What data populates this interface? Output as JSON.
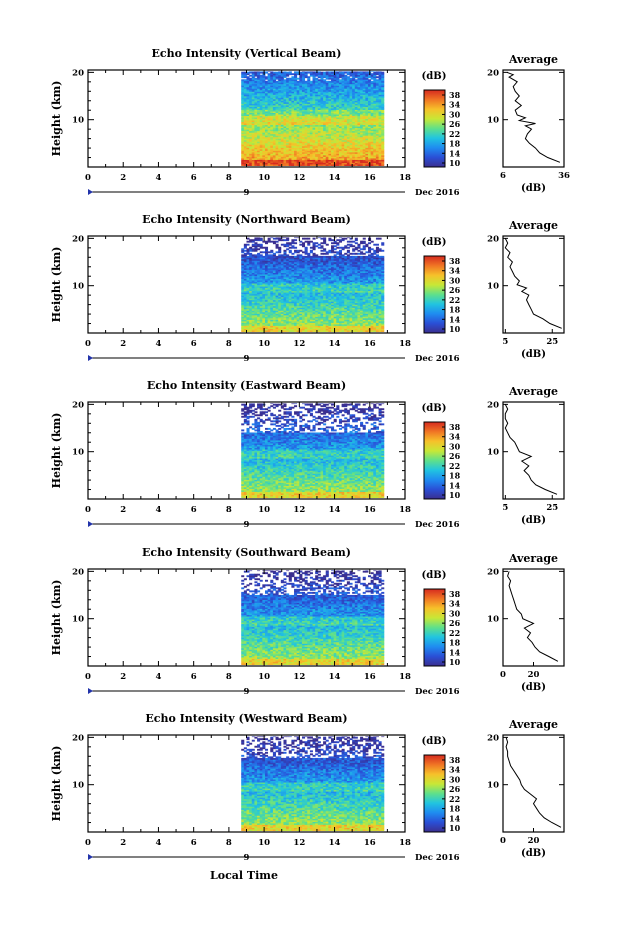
{
  "chart_data": {
    "type": "heatmap",
    "x_ticks": [
      0,
      2,
      4,
      6,
      8,
      10,
      12,
      14,
      16,
      18
    ],
    "y_ticks": [
      10,
      20
    ],
    "xlim": [
      0,
      18
    ],
    "ylim": [
      0,
      20.5
    ],
    "y_axis_label": "Height (km)",
    "x_axis_label": "Local Time",
    "date_marker": "9",
    "date_label": "Dec 2016",
    "colorbar": {
      "unit": "(dB)",
      "ticks": [
        "38",
        "34",
        "30",
        "26",
        "22",
        "18",
        "14",
        "10"
      ],
      "range": [
        10,
        38
      ],
      "colormap": [
        "#3b2e8f",
        "#2a4fd6",
        "#1f8cf0",
        "#21c4e0",
        "#5fe08a",
        "#c8e836",
        "#f6c12a",
        "#f07524",
        "#d62a1f"
      ]
    },
    "data_start_time": 8.7,
    "data_end_time": 16.8,
    "avg_title": "Average",
    "avg_unit": "(dB)",
    "panels": [
      {
        "title": "Echo Intensity (Vertical Beam)",
        "avg_xlim": [
          6,
          36
        ],
        "avg_ticks": [
          "6",
          "36"
        ],
        "avg_profile": [
          [
            34,
            1.0
          ],
          [
            28,
            2.0
          ],
          [
            24,
            3.0
          ],
          [
            22,
            4.0
          ],
          [
            19,
            5.0
          ],
          [
            17,
            6.0
          ],
          [
            18,
            7.0
          ],
          [
            20,
            8.0
          ],
          [
            17,
            8.7
          ],
          [
            22,
            9.2
          ],
          [
            14,
            9.8
          ],
          [
            17,
            10.4
          ],
          [
            13,
            11.0
          ],
          [
            12,
            12.0
          ],
          [
            15,
            13.0
          ],
          [
            12,
            14.0
          ],
          [
            14,
            15.0
          ],
          [
            12,
            16.0
          ],
          [
            11,
            17.0
          ],
          [
            13,
            18.0
          ],
          [
            9,
            19.0
          ],
          [
            11,
            19.5
          ],
          [
            8,
            20.0
          ]
        ]
      },
      {
        "title": "Echo Intensity (Northward Beam)",
        "avg_xlim": [
          4,
          30
        ],
        "avg_ticks": [
          "5",
          "25"
        ],
        "avg_profile": [
          [
            29,
            1.0
          ],
          [
            24,
            2.0
          ],
          [
            21,
            3.0
          ],
          [
            17,
            4.0
          ],
          [
            16,
            5.0
          ],
          [
            15,
            6.0
          ],
          [
            14,
            7.0
          ],
          [
            15,
            8.0
          ],
          [
            12,
            8.8
          ],
          [
            14,
            9.5
          ],
          [
            10,
            10.2
          ],
          [
            11,
            11.0
          ],
          [
            9,
            12.0
          ],
          [
            8,
            13.0
          ],
          [
            7,
            14.0
          ],
          [
            8,
            15.0
          ],
          [
            6,
            16.0
          ],
          [
            7,
            17.0
          ],
          [
            5,
            18.0
          ],
          [
            6,
            19.0
          ],
          [
            5,
            20.0
          ]
        ]
      },
      {
        "title": "Echo Intensity (Eastward Beam)",
        "avg_xlim": [
          4,
          30
        ],
        "avg_ticks": [
          "5",
          "25"
        ],
        "avg_profile": [
          [
            27,
            1.0
          ],
          [
            22,
            2.0
          ],
          [
            18,
            3.0
          ],
          [
            16,
            4.0
          ],
          [
            15,
            5.0
          ],
          [
            13,
            6.0
          ],
          [
            15,
            7.0
          ],
          [
            12,
            8.0
          ],
          [
            16,
            9.0
          ],
          [
            11,
            10.0
          ],
          [
            10,
            11.0
          ],
          [
            9,
            12.0
          ],
          [
            7,
            13.0
          ],
          [
            6,
            14.0
          ],
          [
            5,
            15.0
          ],
          [
            6,
            16.0
          ],
          [
            5,
            17.0
          ],
          [
            5,
            18.0
          ],
          [
            6,
            19.0
          ],
          [
            5,
            20.0
          ]
        ]
      },
      {
        "title": "Echo Intensity (Southward Beam)",
        "avg_xlim": [
          0,
          40
        ],
        "avg_ticks": [
          "0",
          "20"
        ],
        "avg_profile": [
          [
            36,
            1.0
          ],
          [
            30,
            2.0
          ],
          [
            24,
            3.0
          ],
          [
            21,
            4.0
          ],
          [
            19,
            5.0
          ],
          [
            16,
            6.0
          ],
          [
            18,
            7.0
          ],
          [
            14,
            8.0
          ],
          [
            20,
            9.0
          ],
          [
            13,
            10.0
          ],
          [
            12,
            11.0
          ],
          [
            9,
            12.0
          ],
          [
            8,
            13.0
          ],
          [
            7,
            14.0
          ],
          [
            6,
            15.0
          ],
          [
            5,
            16.0
          ],
          [
            4,
            17.0
          ],
          [
            5,
            18.0
          ],
          [
            3,
            19.0
          ],
          [
            4,
            20.0
          ]
        ]
      },
      {
        "title": "Echo Intensity (Westward Beam)",
        "avg_xlim": [
          0,
          40
        ],
        "avg_ticks": [
          "0",
          "20"
        ],
        "avg_profile": [
          [
            38,
            1.0
          ],
          [
            32,
            2.0
          ],
          [
            27,
            3.0
          ],
          [
            24,
            4.0
          ],
          [
            22,
            5.0
          ],
          [
            20,
            6.0
          ],
          [
            22,
            7.0
          ],
          [
            18,
            8.0
          ],
          [
            14,
            9.0
          ],
          [
            12,
            10.0
          ],
          [
            11,
            11.0
          ],
          [
            9,
            12.0
          ],
          [
            7,
            13.0
          ],
          [
            5,
            14.0
          ],
          [
            4,
            15.0
          ],
          [
            3,
            16.0
          ],
          [
            3,
            17.0
          ],
          [
            2,
            18.0
          ],
          [
            3,
            19.0
          ],
          [
            2,
            20.0
          ]
        ]
      }
    ]
  }
}
